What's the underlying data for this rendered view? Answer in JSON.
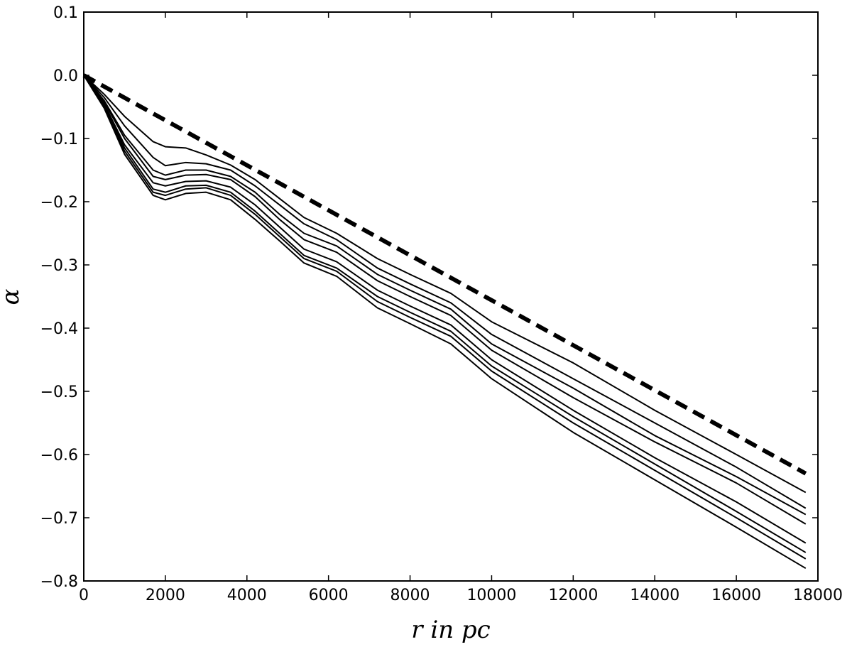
{
  "chart_data": {
    "type": "line",
    "xlabel": "r in pc",
    "ylabel": "α",
    "xlim": [
      0,
      18000
    ],
    "ylim": [
      -0.8,
      0.1
    ],
    "xticks": [
      0,
      2000,
      4000,
      6000,
      8000,
      10000,
      12000,
      14000,
      16000,
      18000
    ],
    "yticks": [
      {
        "value": -0.8,
        "label": "−0.8"
      },
      {
        "value": -0.7,
        "label": "−0.7"
      },
      {
        "value": -0.6,
        "label": "−0.6"
      },
      {
        "value": -0.5,
        "label": "−0.5"
      },
      {
        "value": -0.4,
        "label": "−0.4"
      },
      {
        "value": -0.3,
        "label": "−0.3"
      },
      {
        "value": -0.2,
        "label": "−0.2"
      },
      {
        "value": -0.1,
        "label": "−0.1"
      },
      {
        "value": 0,
        "label": "0.0"
      },
      0.1
    ],
    "grid": false,
    "x": [
      0,
      500,
      1000,
      1700,
      2000,
      2500,
      3000,
      3600,
      4200,
      4800,
      5400,
      6200,
      7200,
      8000,
      9000,
      10000,
      12000,
      14000,
      16000,
      17700
    ],
    "series": [
      {
        "color": "#000000",
        "style": "solid",
        "values": [
          0,
          -0.03,
          -0.065,
          -0.105,
          -0.113,
          -0.115,
          -0.126,
          -0.142,
          -0.165,
          -0.195,
          -0.225,
          -0.25,
          -0.29,
          -0.315,
          -0.345,
          -0.39,
          -0.455,
          -0.53,
          -0.6,
          -0.66
        ]
      },
      {
        "color": "#000000",
        "style": "solid",
        "values": [
          0,
          -0.035,
          -0.08,
          -0.13,
          -0.143,
          -0.138,
          -0.14,
          -0.15,
          -0.175,
          -0.205,
          -0.235,
          -0.26,
          -0.305,
          -0.33,
          -0.36,
          -0.41,
          -0.48,
          -0.55,
          -0.62,
          -0.685
        ]
      },
      {
        "color": "#000000",
        "style": "solid",
        "values": [
          0,
          -0.04,
          -0.095,
          -0.15,
          -0.158,
          -0.15,
          -0.15,
          -0.16,
          -0.185,
          -0.22,
          -0.25,
          -0.27,
          -0.315,
          -0.34,
          -0.37,
          -0.425,
          -0.495,
          -0.57,
          -0.635,
          -0.695
        ]
      },
      {
        "color": "#000000",
        "style": "solid",
        "values": [
          0,
          -0.042,
          -0.1,
          -0.16,
          -0.165,
          -0.158,
          -0.157,
          -0.165,
          -0.192,
          -0.228,
          -0.26,
          -0.28,
          -0.325,
          -0.35,
          -0.38,
          -0.435,
          -0.51,
          -0.58,
          -0.645,
          -0.71
        ]
      },
      {
        "color": "#000000",
        "style": "solid",
        "values": [
          0,
          -0.045,
          -0.11,
          -0.17,
          -0.175,
          -0.168,
          -0.167,
          -0.177,
          -0.205,
          -0.24,
          -0.275,
          -0.295,
          -0.34,
          -0.365,
          -0.395,
          -0.45,
          -0.53,
          -0.605,
          -0.675,
          -0.74
        ]
      },
      {
        "color": "#000000",
        "style": "solid",
        "values": [
          0,
          -0.047,
          -0.115,
          -0.18,
          -0.185,
          -0.175,
          -0.174,
          -0.185,
          -0.215,
          -0.25,
          -0.285,
          -0.305,
          -0.35,
          -0.375,
          -0.405,
          -0.46,
          -0.54,
          -0.615,
          -0.69,
          -0.755
        ]
      },
      {
        "color": "#000000",
        "style": "solid",
        "values": [
          0,
          -0.05,
          -0.12,
          -0.185,
          -0.19,
          -0.18,
          -0.178,
          -0.19,
          -0.22,
          -0.255,
          -0.29,
          -0.31,
          -0.358,
          -0.383,
          -0.413,
          -0.468,
          -0.55,
          -0.625,
          -0.7,
          -0.765
        ]
      },
      {
        "color": "#000000",
        "style": "solid",
        "values": [
          0,
          -0.052,
          -0.125,
          -0.19,
          -0.197,
          -0.187,
          -0.185,
          -0.197,
          -0.228,
          -0.262,
          -0.297,
          -0.318,
          -0.368,
          -0.393,
          -0.425,
          -0.48,
          -0.565,
          -0.64,
          -0.715,
          -0.78
        ]
      },
      {
        "color": "#000000",
        "style": "dashed",
        "values": [
          0,
          -0.0178,
          -0.0356,
          -0.0605,
          -0.0712,
          -0.089,
          -0.1068,
          -0.1281,
          -0.1495,
          -0.1708,
          -0.1922,
          -0.2207,
          -0.2563,
          -0.2848,
          -0.3203,
          -0.3559,
          -0.4271,
          -0.4983,
          -0.5695,
          -0.63
        ]
      }
    ]
  }
}
